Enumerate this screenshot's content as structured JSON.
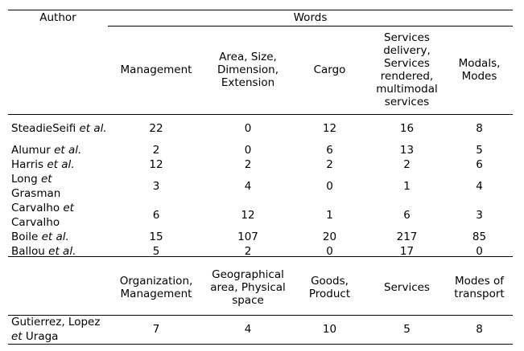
{
  "header": {
    "author": "Author",
    "words": "Words"
  },
  "columns1": [
    "Management",
    "Area, Size, Dimension, Extension",
    "Cargo",
    "Services delivery, Services rendered, multimodal services",
    "Modals, Modes"
  ],
  "rows1": [
    {
      "author_main": "SteadieSeifi ",
      "author_etal": "et al.",
      "values": [
        "22",
        "0",
        "12",
        "16",
        "8"
      ]
    },
    {
      "author_main": "Alumur ",
      "author_etal": "et al.",
      "values": [
        "2",
        "0",
        "6",
        "13",
        "5"
      ]
    },
    {
      "author_main": "Harris ",
      "author_etal": "et al.",
      "values": [
        "12",
        "2",
        "2",
        "2",
        "6"
      ]
    },
    {
      "author_main": "Long ",
      "author_etal": "et",
      "author_tail": "Grasman",
      "values": [
        "3",
        "4",
        "0",
        "1",
        "4"
      ]
    },
    {
      "author_main": "Carvalho ",
      "author_etal": "et",
      "author_tail": "Carvalho",
      "values": [
        "6",
        "12",
        "1",
        "6",
        "3"
      ]
    },
    {
      "author_main": "Boile ",
      "author_etal": "et al.",
      "values": [
        "15",
        "107",
        "20",
        "217",
        "85"
      ]
    },
    {
      "author_main": "Ballou ",
      "author_etal": "et al.",
      "values": [
        "5",
        "2",
        "0",
        "17",
        "0"
      ]
    }
  ],
  "columns2": [
    "Organization, Management",
    "Geographical area, Physical space",
    "Goods, Product",
    "Services",
    "Modes of transport"
  ],
  "rows2": [
    {
      "author_main": "Gutierrez, Lopez ",
      "author_etal": "et",
      "author_tail": " Uraga",
      "values": [
        "7",
        "4",
        "10",
        "5",
        "8"
      ]
    }
  ]
}
